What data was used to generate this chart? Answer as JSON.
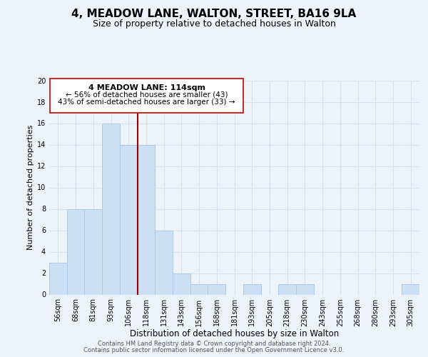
{
  "title": "4, MEADOW LANE, WALTON, STREET, BA16 9LA",
  "subtitle": "Size of property relative to detached houses in Walton",
  "xlabel": "Distribution of detached houses by size in Walton",
  "ylabel": "Number of detached properties",
  "bin_labels": [
    "56sqm",
    "68sqm",
    "81sqm",
    "93sqm",
    "106sqm",
    "118sqm",
    "131sqm",
    "143sqm",
    "156sqm",
    "168sqm",
    "181sqm",
    "193sqm",
    "205sqm",
    "218sqm",
    "230sqm",
    "243sqm",
    "255sqm",
    "268sqm",
    "280sqm",
    "293sqm",
    "305sqm"
  ],
  "bar_heights": [
    3,
    8,
    8,
    16,
    14,
    14,
    6,
    2,
    1,
    1,
    0,
    1,
    0,
    1,
    1,
    0,
    0,
    0,
    0,
    0,
    1
  ],
  "bar_color": "#cce0f5",
  "bar_edgecolor": "#aac8e8",
  "vline_position": 4.5,
  "vline_color": "#990000",
  "annotation_title": "4 MEADOW LANE: 114sqm",
  "annotation_line1": "← 56% of detached houses are smaller (43)",
  "annotation_line2": "43% of semi-detached houses are larger (33) →",
  "annotation_box_color": "#ffffff",
  "annotation_box_edgecolor": "#cc0000",
  "ylim": [
    0,
    20
  ],
  "yticks": [
    0,
    2,
    4,
    6,
    8,
    10,
    12,
    14,
    16,
    18,
    20
  ],
  "background_color": "#eef2f9",
  "grid_color": "#d8e0ee",
  "footer_line1": "Contains HM Land Registry data © Crown copyright and database right 2024.",
  "footer_line2": "Contains public sector information licensed under the Open Government Licence v3.0.",
  "title_fontsize": 11,
  "subtitle_fontsize": 9,
  "xlabel_fontsize": 8.5,
  "ylabel_fontsize": 8,
  "tick_fontsize": 7,
  "footer_fontsize": 6,
  "ann_title_fontsize": 8,
  "ann_text_fontsize": 7.5
}
